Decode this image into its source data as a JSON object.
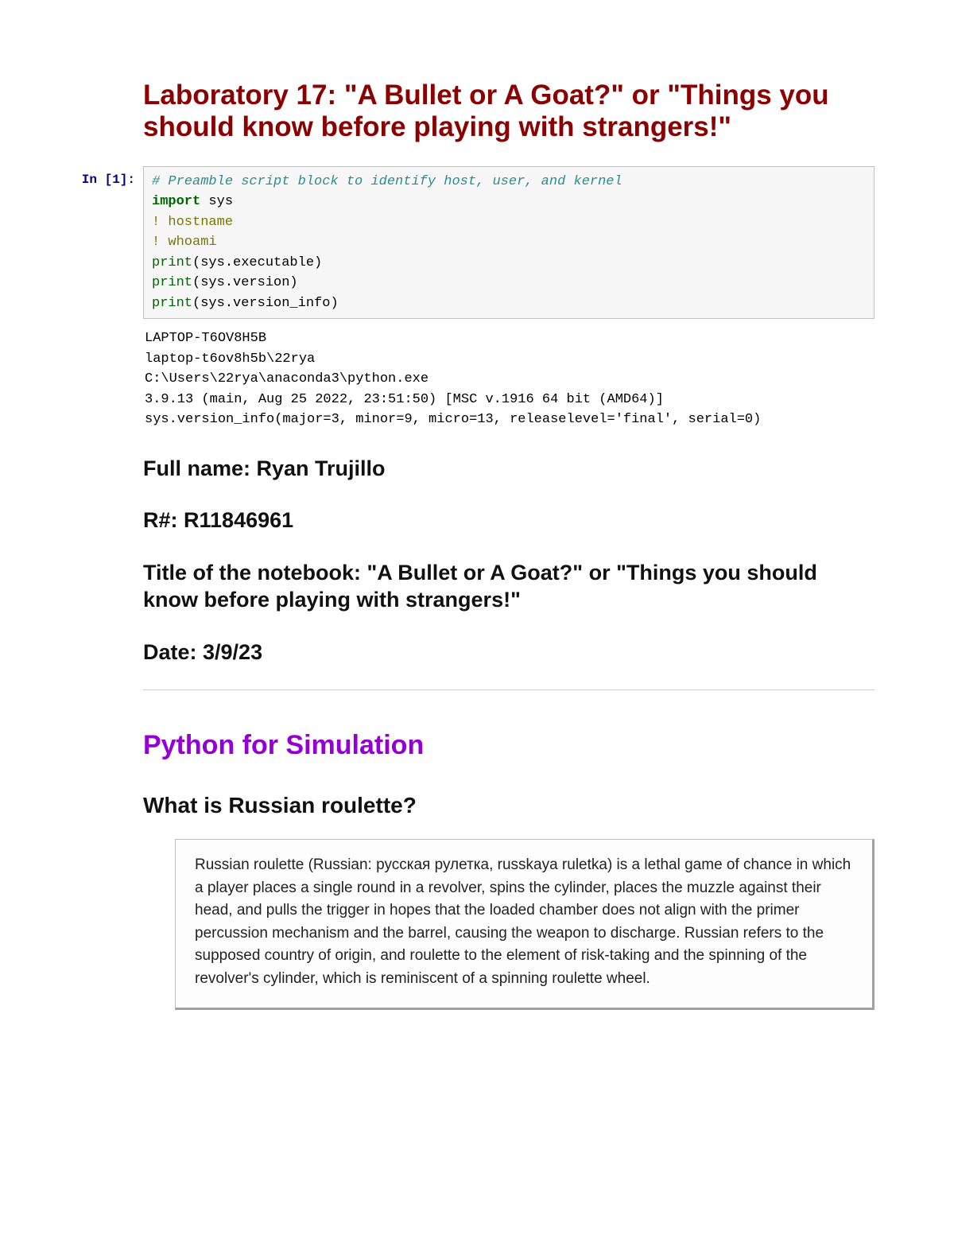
{
  "title": "Laboratory 17: \"A Bullet or A Goat?\" or \"Things you should know before playing with strangers!\"",
  "prompt": "In [1]:",
  "code": {
    "l1": "# Preamble script block to identify host, user, and kernel",
    "l2a": "import",
    "l2b": " sys",
    "l3": "! hostname",
    "l4": "! whoami",
    "l5a": "print",
    "l5b": "(sys.executable)",
    "l6a": "print",
    "l6b": "(sys.version)",
    "l7a": "print",
    "l7b": "(sys.version_info)"
  },
  "output": "LAPTOP-T6OV8H5B\nlaptop-t6ov8h5b\\22rya\nC:\\Users\\22rya\\anaconda3\\python.exe\n3.9.13 (main, Aug 25 2022, 23:51:50) [MSC v.1916 64 bit (AMD64)]\nsys.version_info(major=3, minor=9, micro=13, releaselevel='final', serial=0)",
  "meta": {
    "name": "Full name: Ryan Trujillo",
    "rnum": "R#: R11846961",
    "nbtitle": "Title of the notebook: \"A Bullet or A Goat?\" or \"Things you should know before playing with strangers!\"",
    "date": "Date: 3/9/23"
  },
  "section": {
    "heading": "Python for Simulation",
    "sub": "What is Russian roulette?",
    "blockquote": "Russian roulette (Russian: русская рулетка, russkaya ruletka) is a lethal game of chance in which a player places a single round in a revolver, spins the cylinder, places the muzzle against their head, and pulls the trigger in hopes that the loaded chamber does not align with the primer percussion mechanism and the barrel, causing the weapon to discharge. Russian refers to the supposed country of origin, and roulette to the element of risk-taking and the spinning of the revolver's cylinder, which is reminiscent of a spinning roulette wheel."
  },
  "colors": {
    "title": "#8b0000",
    "prompt": "#000080",
    "comment": "#2e8b8b",
    "keyword": "#006400",
    "section": "#9400d3",
    "border": "#c0c0c0",
    "codebg": "#f7f7f7"
  }
}
